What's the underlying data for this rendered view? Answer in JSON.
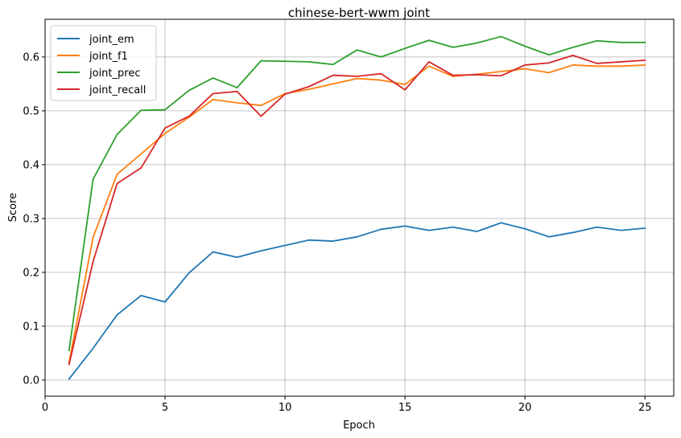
{
  "chart_data": {
    "type": "line",
    "title": "chinese-bert-wwm joint",
    "xlabel": "Epoch",
    "ylabel": "Score",
    "xlim": [
      0,
      26.2
    ],
    "ylim": [
      -0.03,
      0.67
    ],
    "xticks": [
      0,
      5,
      10,
      15,
      20,
      25
    ],
    "yticks": [
      0.0,
      0.1,
      0.2,
      0.3,
      0.4,
      0.5,
      0.6
    ],
    "grid": true,
    "legend_position": "top-left",
    "x": [
      1,
      2,
      3,
      4,
      5,
      6,
      7,
      8,
      9,
      10,
      11,
      12,
      13,
      14,
      15,
      16,
      17,
      18,
      19,
      20,
      21,
      22,
      23,
      24,
      25
    ],
    "series": [
      {
        "name": "joint_em",
        "color": "#1f77b4",
        "values": [
          0.002,
          0.059,
          0.121,
          0.157,
          0.145,
          0.199,
          0.238,
          0.228,
          0.24,
          0.25,
          0.26,
          0.258,
          0.266,
          0.28,
          0.286,
          0.278,
          0.284,
          0.276,
          0.292,
          0.281,
          0.266,
          0.274,
          0.284,
          0.278,
          0.282
        ]
      },
      {
        "name": "joint_f1",
        "color": "#ff7f0e",
        "values": [
          0.033,
          0.265,
          0.382,
          0.42,
          0.458,
          0.488,
          0.521,
          0.515,
          0.51,
          0.532,
          0.54,
          0.55,
          0.56,
          0.557,
          0.549,
          0.583,
          0.564,
          0.568,
          0.573,
          0.578,
          0.571,
          0.585,
          0.583,
          0.583,
          0.585
        ]
      },
      {
        "name": "joint_prec",
        "color": "#2ca02c",
        "values": [
          0.055,
          0.373,
          0.456,
          0.501,
          0.502,
          0.538,
          0.561,
          0.543,
          0.593,
          0.592,
          0.591,
          0.586,
          0.613,
          0.6,
          0.616,
          0.631,
          0.618,
          0.626,
          0.638,
          0.62,
          0.604,
          0.618,
          0.63,
          0.627,
          0.627
        ]
      },
      {
        "name": "joint_recall",
        "color": "#d62728",
        "values": [
          0.029,
          0.22,
          0.365,
          0.394,
          0.468,
          0.49,
          0.532,
          0.536,
          0.49,
          0.531,
          0.545,
          0.566,
          0.564,
          0.569,
          0.539,
          0.591,
          0.566,
          0.567,
          0.565,
          0.585,
          0.589,
          0.603,
          0.588,
          0.591,
          0.594
        ]
      }
    ]
  }
}
